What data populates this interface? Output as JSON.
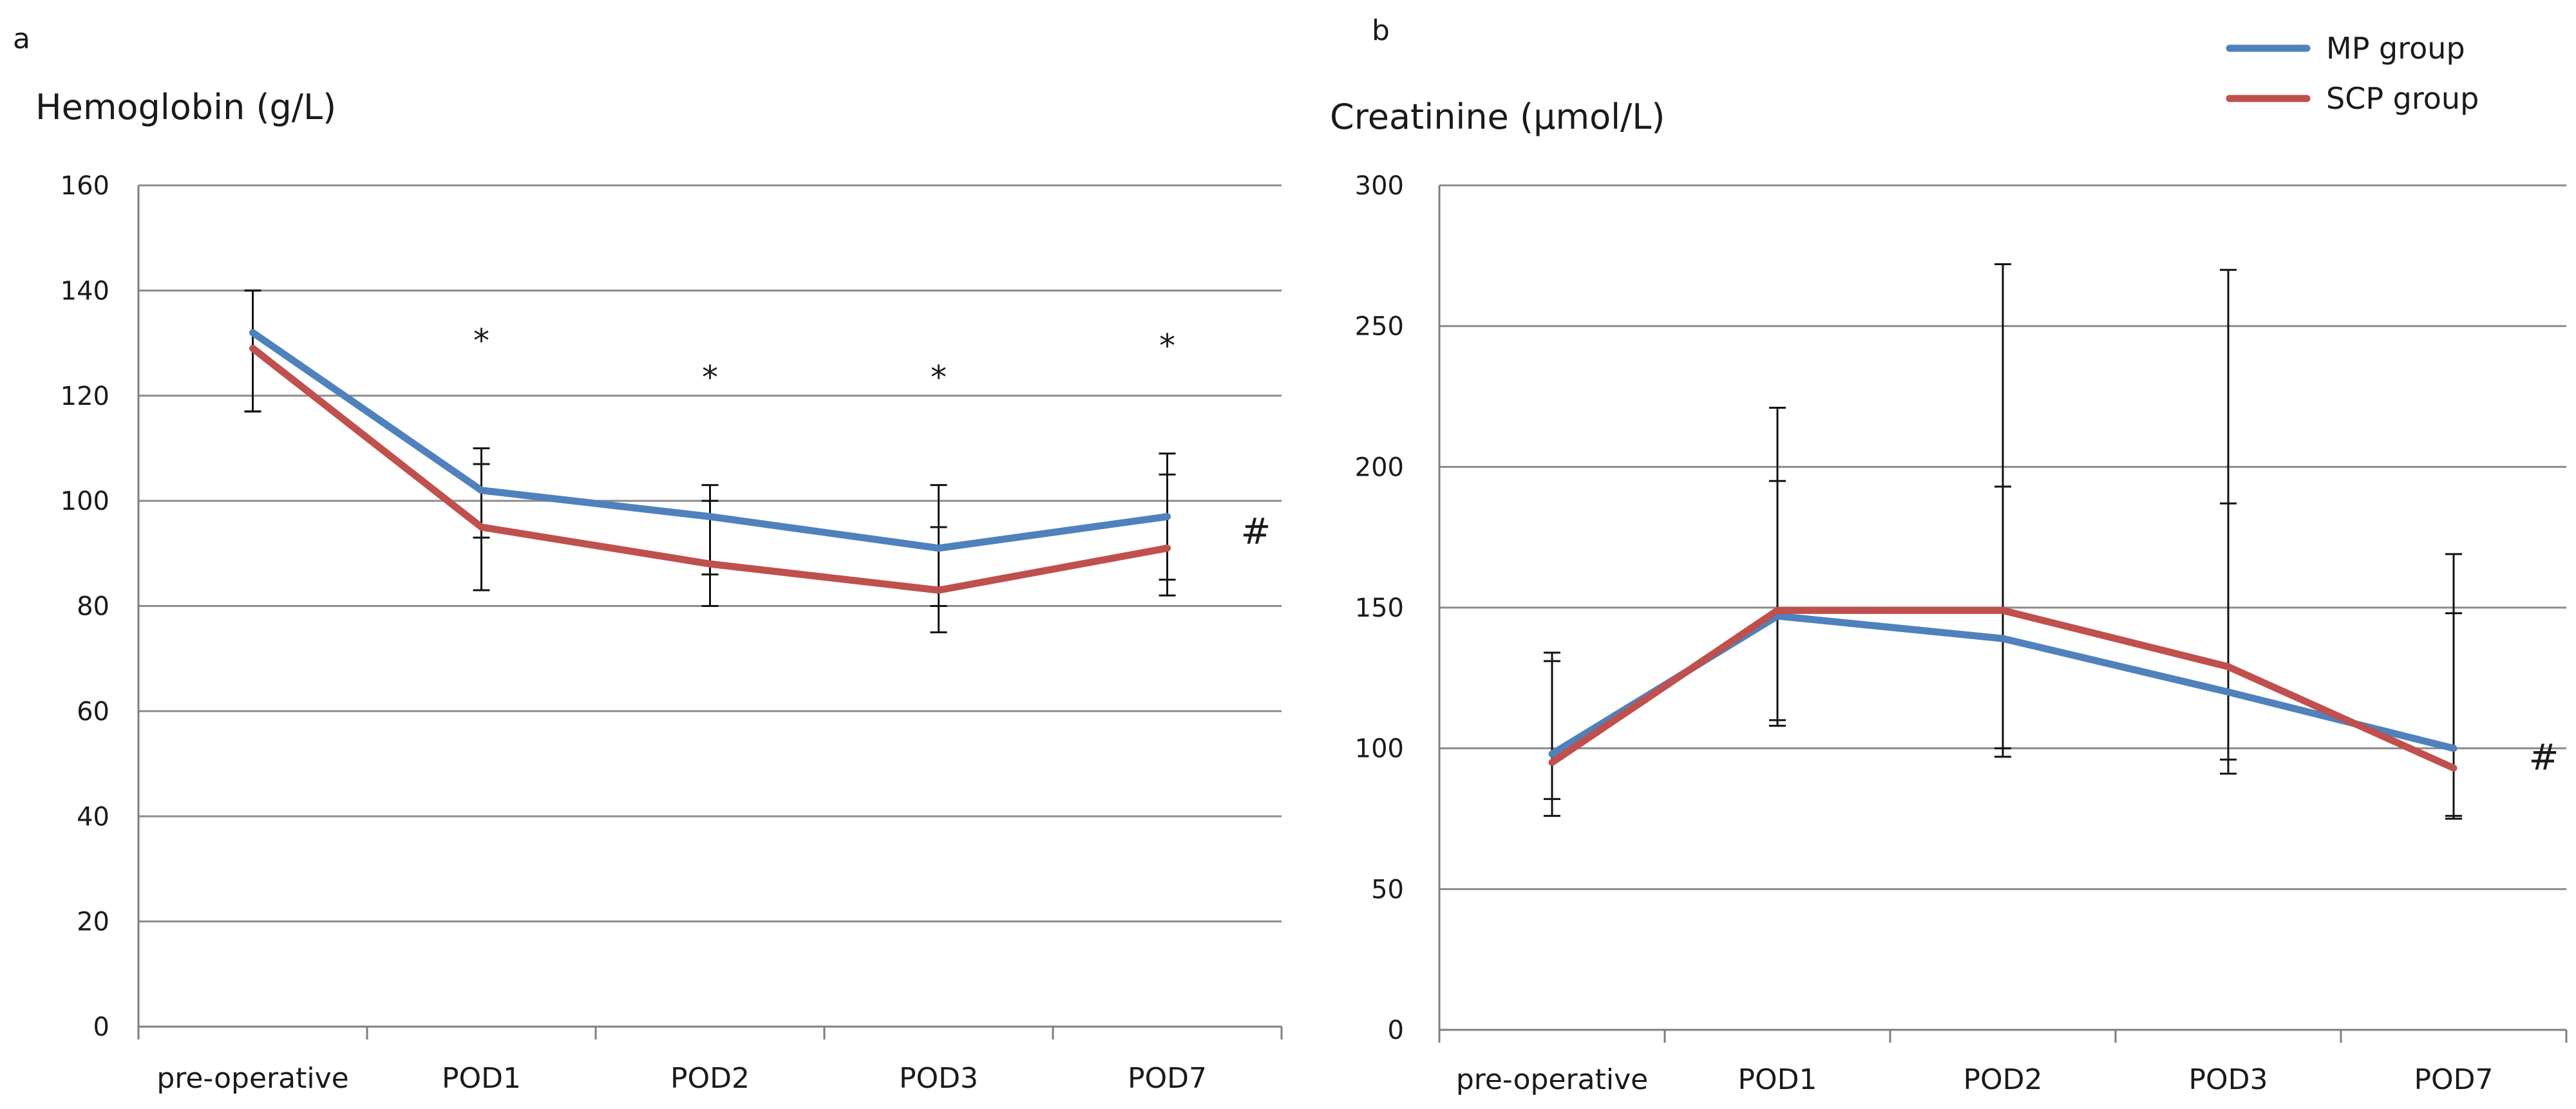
{
  "colors": {
    "mp": "#4f81bd",
    "scp": "#c0504d",
    "grid": "#8c8c8c",
    "axis": "#7f7f7f",
    "error": "#111111"
  },
  "legend": [
    {
      "name": "MP group",
      "color": "#4f81bd"
    },
    {
      "name": "SCP group",
      "color": "#c0504d"
    }
  ],
  "chart_data": [
    {
      "type": "line",
      "panel": "a",
      "title": "Hemoglobin (g/L)",
      "categories": [
        "pre-operative",
        "POD1",
        "POD2",
        "POD3",
        "POD7"
      ],
      "ylim": [
        0,
        160
      ],
      "yticks": [
        0,
        20,
        40,
        60,
        80,
        100,
        120,
        140,
        160
      ],
      "grid": true,
      "series": [
        {
          "name": "MP group",
          "values": [
            132,
            102,
            97,
            91,
            97
          ],
          "err_low": [
            117,
            93,
            86,
            80,
            85
          ],
          "err_high": [
            140,
            110,
            103,
            103,
            109
          ]
        },
        {
          "name": "SCP group",
          "values": [
            129,
            95,
            88,
            83,
            91
          ],
          "err_low": [
            117,
            83,
            80,
            75,
            82
          ],
          "err_high": [
            140,
            107,
            100,
            95,
            105
          ]
        }
      ],
      "significance": [
        "",
        "*",
        "*",
        "*",
        "*"
      ],
      "annotation": "#"
    },
    {
      "type": "line",
      "panel": "b",
      "title": "Creatinine (μmol/L)",
      "categories": [
        "pre-operative",
        "POD1",
        "POD2",
        "POD3",
        "POD7"
      ],
      "ylim": [
        0,
        300
      ],
      "yticks": [
        0,
        50,
        100,
        150,
        200,
        250,
        300
      ],
      "grid": true,
      "series": [
        {
          "name": "MP group",
          "values": [
            98,
            147,
            139,
            120,
            100
          ],
          "err_low": [
            82,
            108,
            100,
            91,
            76
          ],
          "err_high": [
            134,
            221,
            272,
            270,
            169
          ]
        },
        {
          "name": "SCP group",
          "values": [
            95,
            149,
            149,
            129,
            93
          ],
          "err_low": [
            76,
            110,
            97,
            96,
            75
          ],
          "err_high": [
            131,
            195,
            193,
            187,
            148
          ]
        }
      ],
      "significance": [
        "",
        "",
        "",
        "",
        ""
      ],
      "annotation": "#"
    }
  ]
}
